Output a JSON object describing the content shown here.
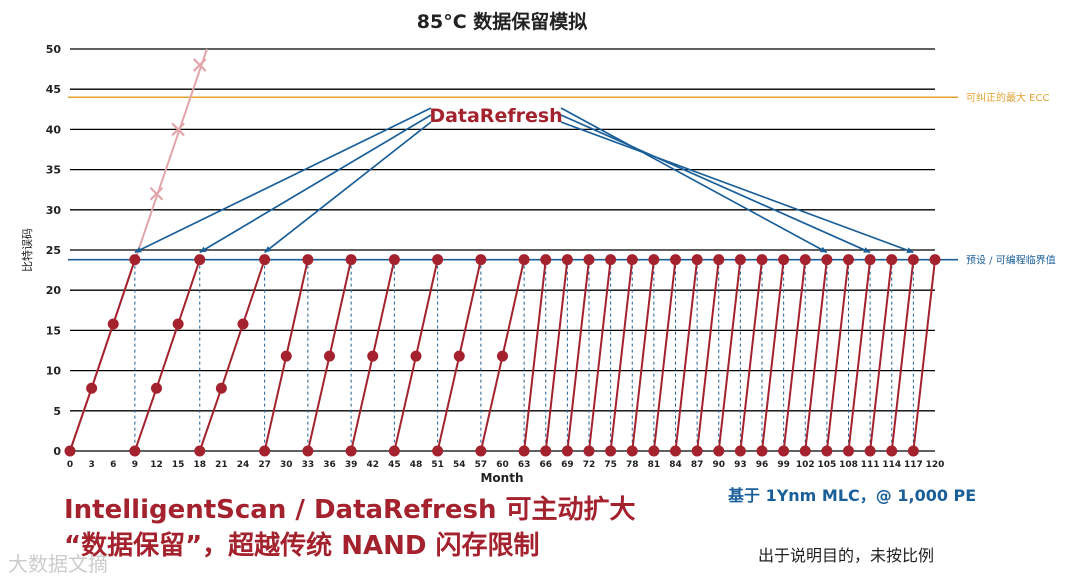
{
  "chart_data": {
    "type": "line",
    "title": "85°C 数据保留模拟",
    "xlabel": "Month",
    "ylabel": "比特误码",
    "xlim": [
      0,
      120
    ],
    "ylim": [
      0,
      50
    ],
    "xticks": [
      0,
      3,
      6,
      9,
      12,
      15,
      18,
      21,
      24,
      27,
      30,
      33,
      36,
      39,
      42,
      45,
      48,
      51,
      54,
      57,
      60,
      63,
      66,
      69,
      72,
      75,
      78,
      81,
      84,
      87,
      90,
      93,
      96,
      99,
      102,
      105,
      108,
      111,
      114,
      117,
      120
    ],
    "yticks": [
      0,
      5,
      10,
      15,
      20,
      25,
      30,
      35,
      40,
      45,
      50
    ],
    "grid": "horizontal",
    "colors": {
      "refresh": "#a3222d",
      "no_refresh": "#e1a5aa",
      "ecc": "#e3a232",
      "threshold": "#1b5f99",
      "grid": "#000000"
    },
    "reference_lines": [
      {
        "label": "可纠正的最大 ECC",
        "y": 44
      },
      {
        "label": "预设 / 可编程临界值",
        "y": 23.8
      }
    ],
    "annotation": {
      "label": "DataRefresh",
      "x": 6.9,
      "y": 42,
      "arrows_to": [
        9,
        18,
        27,
        105,
        111,
        117
      ],
      "arrow_y": 24.7
    },
    "no_refresh_series": {
      "points": [
        [
          0,
          0
        ],
        [
          3,
          7.8
        ],
        [
          6,
          15.8
        ],
        [
          9,
          23.8
        ],
        [
          12,
          32
        ],
        [
          15,
          40
        ],
        [
          18,
          48
        ]
      ],
      "line_end": [
        19,
        50
      ]
    },
    "refresh_series": {
      "segments": [
        {
          "x": [
            0,
            3,
            6,
            9
          ],
          "y": [
            0,
            7.8,
            15.8,
            23.8
          ]
        },
        {
          "x": [
            9,
            12,
            15,
            18
          ],
          "y": [
            0,
            7.8,
            15.8,
            23.8
          ]
        },
        {
          "x": [
            18,
            21,
            24,
            27
          ],
          "y": [
            0,
            7.8,
            15.8,
            23.8
          ]
        },
        {
          "x": [
            27,
            30,
            33
          ],
          "y": [
            0,
            11.8,
            23.8
          ]
        },
        {
          "x": [
            33,
            36,
            39
          ],
          "y": [
            0,
            11.8,
            23.8
          ]
        },
        {
          "x": [
            39,
            42,
            45
          ],
          "y": [
            0,
            11.8,
            23.8
          ]
        },
        {
          "x": [
            45,
            48,
            51
          ],
          "y": [
            0,
            11.8,
            23.8
          ]
        },
        {
          "x": [
            51,
            54,
            57
          ],
          "y": [
            0,
            11.8,
            23.8
          ]
        },
        {
          "x": [
            57,
            60,
            63
          ],
          "y": [
            0,
            11.8,
            23.8
          ]
        },
        {
          "x": [
            63,
            66
          ],
          "y": [
            0,
            23.8
          ]
        },
        {
          "x": [
            66,
            69
          ],
          "y": [
            0,
            23.8
          ]
        },
        {
          "x": [
            69,
            72
          ],
          "y": [
            0,
            23.8
          ]
        },
        {
          "x": [
            72,
            75
          ],
          "y": [
            0,
            23.8
          ]
        },
        {
          "x": [
            75,
            78
          ],
          "y": [
            0,
            23.8
          ]
        },
        {
          "x": [
            78,
            81
          ],
          "y": [
            0,
            23.8
          ]
        },
        {
          "x": [
            81,
            84
          ],
          "y": [
            0,
            23.8
          ]
        },
        {
          "x": [
            84,
            87
          ],
          "y": [
            0,
            23.8
          ]
        },
        {
          "x": [
            87,
            90
          ],
          "y": [
            0,
            23.8
          ]
        },
        {
          "x": [
            90,
            93
          ],
          "y": [
            0,
            23.8
          ]
        },
        {
          "x": [
            93,
            96
          ],
          "y": [
            0,
            23.8
          ]
        },
        {
          "x": [
            96,
            99
          ],
          "y": [
            0,
            23.8
          ]
        },
        {
          "x": [
            99,
            102
          ],
          "y": [
            0,
            23.8
          ]
        },
        {
          "x": [
            102,
            105
          ],
          "y": [
            0,
            23.8
          ]
        },
        {
          "x": [
            105,
            108
          ],
          "y": [
            0,
            23.8
          ]
        },
        {
          "x": [
            108,
            111
          ],
          "y": [
            0,
            23.8
          ]
        },
        {
          "x": [
            111,
            114
          ],
          "y": [
            0,
            23.8
          ]
        },
        {
          "x": [
            114,
            117
          ],
          "y": [
            0,
            23.8
          ]
        },
        {
          "x": [
            117,
            120
          ],
          "y": [
            0,
            23.8
          ]
        }
      ]
    }
  },
  "captions": {
    "line1": "IntelligentScan / DataRefresh 可主动扩大",
    "line2": "“数据保留”，超越传统 NAND 闪存限制"
  },
  "note_right": "基于 1Ynm MLC，@ 1,000 PE",
  "note_bottom": "出于说明目的，未按比例",
  "watermark": "大数据文摘"
}
